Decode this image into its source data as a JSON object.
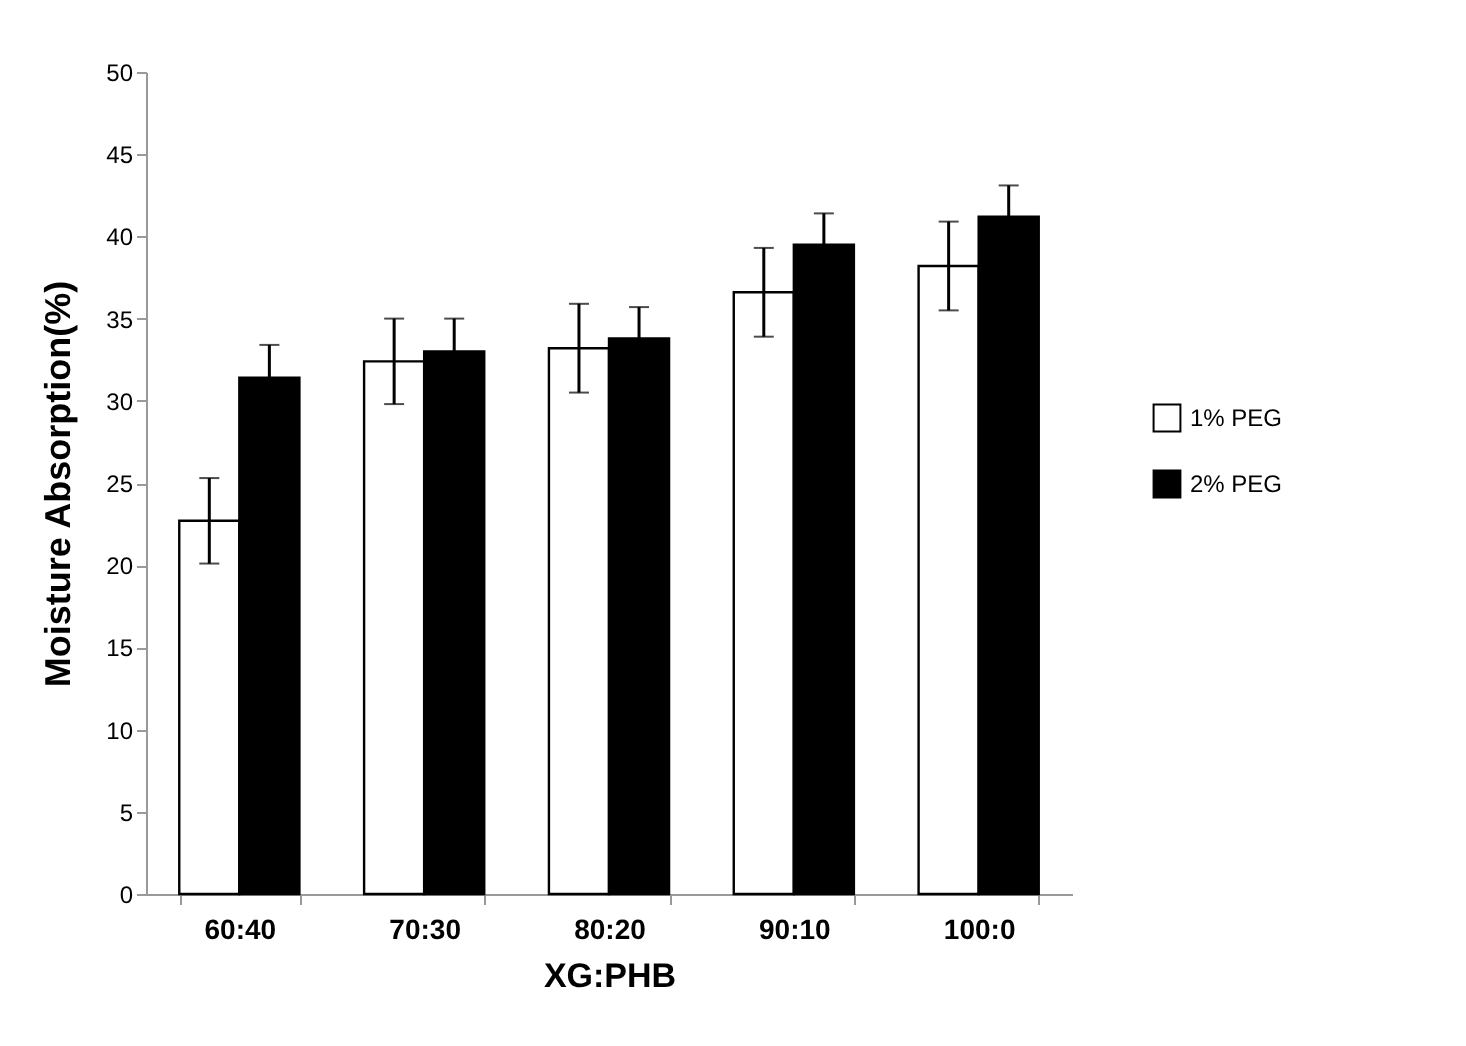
{
  "chart_data": {
    "type": "bar",
    "xlabel": "XG:PHB",
    "ylabel": "Moisture Absorption(%)",
    "categories": [
      "60:40",
      "70:30",
      "80:20",
      "90:10",
      "100:0"
    ],
    "series": [
      {
        "name": "1% PEG",
        "color": "#ffffff",
        "values": [
          22.7,
          32.4,
          33.2,
          36.6,
          38.2
        ],
        "errors": [
          2.6,
          2.6,
          2.7,
          2.7,
          2.7
        ]
      },
      {
        "name": "2% PEG",
        "color": "#000000",
        "values": [
          31.4,
          33.0,
          33.8,
          39.5,
          41.2
        ],
        "errors": [
          2.0,
          2.0,
          1.9,
          1.9,
          1.9
        ]
      }
    ],
    "ylim": [
      0,
      50
    ],
    "yticks": [
      0,
      5,
      10,
      15,
      20,
      25,
      30,
      35,
      40,
      45,
      50
    ],
    "grid": false,
    "legend": "right"
  }
}
